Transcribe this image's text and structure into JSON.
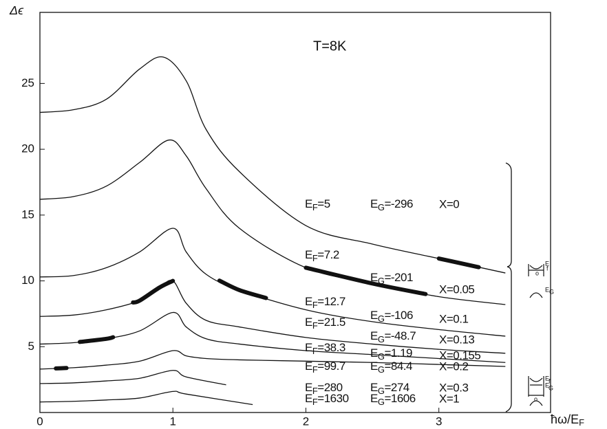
{
  "chart_data": {
    "type": "line",
    "title": "T=8K",
    "ylabel": "Δϵ",
    "xlabel": [
      "ħω/E",
      "F"
    ],
    "xlim": [
      0,
      3.84
    ],
    "ylim": [
      0,
      30.4
    ],
    "xticks": [
      0,
      1,
      2,
      3
    ],
    "yticks": [
      5,
      10,
      15,
      20,
      25
    ],
    "color": "#111111",
    "series": [
      {
        "x": [
          0,
          0.25,
          0.5,
          0.75,
          0.93,
          1.1,
          1.25,
          1.5,
          2,
          2.5,
          3,
          3.5
        ],
        "values": [
          22.8,
          23.0,
          23.8,
          26.1,
          27.0,
          25.2,
          21.5,
          18.3,
          14.2,
          12.8,
          11.7,
          10.6
        ],
        "thick": [
          3.0,
          3.3
        ],
        "ef_label": [
          "E",
          "F",
          "=5"
        ],
        "eg_label": [
          "E",
          "G",
          "=-296"
        ],
        "x_label": "X=0"
      },
      {
        "x": [
          0,
          0.25,
          0.5,
          0.75,
          0.97,
          1.1,
          1.25,
          1.5,
          2,
          2.5,
          3,
          3.5
        ],
        "values": [
          16.2,
          16.4,
          17.2,
          19.0,
          20.7,
          19.5,
          17.0,
          14.0,
          11.0,
          9.8,
          8.8,
          8.2
        ],
        "thick": [
          2.0,
          2.9
        ],
        "ef_label": [
          "E",
          "F",
          "=7.2"
        ],
        "eg_label": [
          "E",
          "G",
          "=-201"
        ],
        "x_label": "X=0.05"
      },
      {
        "x": [
          0,
          0.25,
          0.5,
          0.75,
          1.0,
          1.1,
          1.25,
          1.5,
          2,
          2.5,
          3,
          3.5
        ],
        "values": [
          10.3,
          10.4,
          11.0,
          12.2,
          14.0,
          12.2,
          10.5,
          9.3,
          7.8,
          6.9,
          6.3,
          5.8
        ],
        "thick": [
          1.35,
          1.7
        ],
        "ef_label": [
          "E",
          "F",
          "=12.7"
        ],
        "eg_label": [
          "E",
          "G",
          "=-106"
        ],
        "x_label": "X=0.1"
      },
      {
        "x": [
          0,
          0.25,
          0.5,
          0.75,
          0.9,
          1.0,
          1.1,
          1.25,
          1.5,
          2,
          2.5,
          3,
          3.5
        ],
        "values": [
          7.3,
          7.4,
          7.8,
          8.5,
          9.5,
          10.0,
          8.3,
          7.0,
          6.5,
          5.7,
          5.2,
          4.8,
          4.5
        ],
        "thick": [
          0.7,
          1.0
        ],
        "ef_label": [
          "E",
          "F",
          "=21.5"
        ],
        "eg_label": [
          "E",
          "G",
          "=-48.7"
        ],
        "x_label": "X=0.13"
      },
      {
        "x": [
          0,
          0.25,
          0.5,
          0.75,
          1.0,
          1.1,
          1.25,
          1.5,
          2,
          2.5,
          3,
          3.5
        ],
        "values": [
          5.2,
          5.3,
          5.6,
          6.2,
          7.6,
          6.5,
          5.6,
          5.2,
          4.7,
          4.4,
          4.1,
          3.8
        ],
        "thick": [
          0.3,
          0.55
        ],
        "ef_label": [
          "E",
          "F",
          "=38.3"
        ],
        "eg_label": [
          "E",
          "G",
          "=1.19"
        ],
        "x_label": "X=0.155"
      },
      {
        "x": [
          0,
          0.25,
          0.5,
          0.75,
          1.0,
          1.1,
          1.25,
          1.5,
          2,
          2.5,
          3,
          3.5
        ],
        "values": [
          3.3,
          3.4,
          3.6,
          3.9,
          4.7,
          4.3,
          4.1,
          4.0,
          3.9,
          3.8,
          3.65,
          3.5
        ],
        "thick": [
          0.12,
          0.2
        ],
        "ef_label": [
          "E",
          "F",
          "=99.7"
        ],
        "eg_label": [
          "E",
          "G",
          "=84.4"
        ],
        "x_label": "X=0.2"
      },
      {
        "x": [
          0,
          0.25,
          0.5,
          0.75,
          1.0,
          1.1,
          1.4
        ],
        "values": [
          2.2,
          2.25,
          2.4,
          2.6,
          3.2,
          2.7,
          2.1
        ],
        "ef_label": [
          "E",
          "F",
          "=280"
        ],
        "eg_label": [
          "E",
          "G",
          "=274"
        ],
        "x_label": "X=0.3"
      },
      {
        "x": [
          0,
          0.25,
          0.5,
          0.75,
          1.0,
          1.1,
          1.6
        ],
        "values": [
          0.8,
          0.85,
          0.95,
          1.1,
          1.6,
          1.4,
          0.6
        ],
        "ef_label": [
          "E",
          "F",
          "=1630"
        ],
        "eg_label": [
          "E",
          "G",
          "=1606"
        ],
        "x_label": "X=1"
      }
    ],
    "insets": [
      [
        "E",
        "f",
        "o",
        "E",
        "G"
      ],
      [
        "E",
        "f",
        "E",
        "G",
        "o"
      ]
    ]
  }
}
